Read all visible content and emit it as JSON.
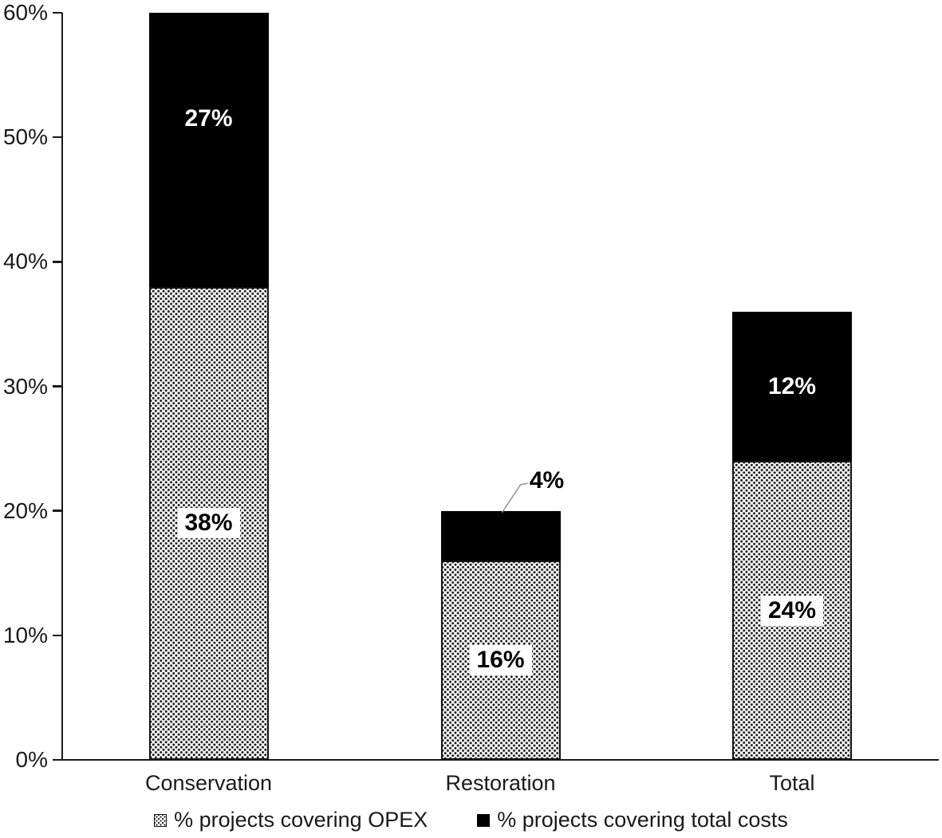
{
  "chart_data": {
    "type": "bar",
    "stacked": true,
    "title": "",
    "xlabel": "",
    "ylabel": "",
    "categories": [
      "Conservation",
      "Restoration",
      "Total"
    ],
    "series": [
      {
        "name": "% projects covering OPEX",
        "style": "dotted-pattern",
        "values": [
          38,
          16,
          24
        ],
        "labels": [
          "38%",
          "16%",
          "24%"
        ]
      },
      {
        "name": "% projects covering total costs",
        "style": "solid-black",
        "values": [
          27,
          4,
          12
        ],
        "labels": [
          "27%",
          "4%",
          "12%"
        ]
      }
    ],
    "ylim": [
      0,
      60
    ],
    "yticks": [
      "0%",
      "10%",
      "20%",
      "30%",
      "40%",
      "50%",
      "60%"
    ],
    "grid": false,
    "legend_position": "bottom",
    "bars_clipped_at_ymax": [
      "Conservation"
    ],
    "callout": {
      "category": "Restoration",
      "series": 1,
      "text": "4%"
    }
  },
  "legend": {
    "items": [
      {
        "label": "% projects covering OPEX",
        "swatch": "dotted-pattern-swatch"
      },
      {
        "label": "% projects covering total costs",
        "swatch": "black-square-swatch"
      }
    ]
  },
  "colors": {
    "background": "#ffffff",
    "bar_black": "#000000",
    "pattern_dot": "#1f1f1f",
    "axis": "#1a1a1a",
    "leader_line": "#999999",
    "label_on_black": "#ffffff",
    "label_on_pattern": "#000000"
  }
}
